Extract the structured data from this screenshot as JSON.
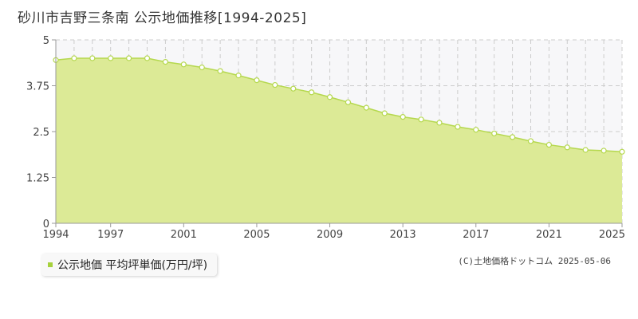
{
  "title": "砂川市吉野三条南 公示地価推移[1994-2025]",
  "legend_label": "公示地価 平均坪単価(万円/坪)",
  "copyright": "(C)土地価格ドットコム 2025-05-06",
  "colors": {
    "fill": "#dcea96",
    "line": "#b5d84e",
    "point_stroke": "#b5d84e",
    "grid": "#cccccc",
    "plot_bg": "#f7f7f9",
    "axis": "#999999"
  },
  "chart_data": {
    "type": "area",
    "title": "砂川市吉野三条南 公示地価推移[1994-2025]",
    "xlabel": "",
    "ylabel": "",
    "xlim": [
      1994,
      2025
    ],
    "ylim": [
      0,
      5
    ],
    "x_ticks": [
      "1994",
      "1997",
      "2001",
      "2005",
      "2009",
      "2013",
      "2017",
      "2021",
      "2025"
    ],
    "y_ticks": [
      "0",
      "1.25",
      "2.5",
      "3.75",
      "5"
    ],
    "grid": true,
    "legend": "bottom-left",
    "series": [
      {
        "name": "公示地価 平均坪単価(万円/坪)",
        "x": [
          1994,
          1995,
          1996,
          1997,
          1998,
          1999,
          2000,
          2001,
          2002,
          2003,
          2004,
          2005,
          2006,
          2007,
          2008,
          2009,
          2010,
          2011,
          2012,
          2013,
          2014,
          2015,
          2016,
          2017,
          2018,
          2019,
          2020,
          2021,
          2022,
          2023,
          2024,
          2025
        ],
        "values": [
          4.45,
          4.5,
          4.5,
          4.5,
          4.5,
          4.5,
          4.4,
          4.33,
          4.25,
          4.15,
          4.03,
          3.9,
          3.77,
          3.67,
          3.57,
          3.44,
          3.3,
          3.15,
          3.0,
          2.9,
          2.83,
          2.74,
          2.63,
          2.55,
          2.45,
          2.35,
          2.24,
          2.14,
          2.07,
          2.0,
          1.98,
          1.95
        ]
      }
    ]
  }
}
